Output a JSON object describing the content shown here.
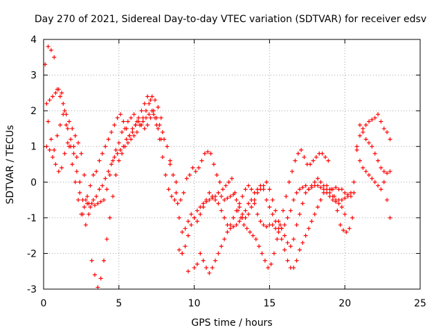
{
  "chart_data": {
    "type": "scatter",
    "title": "Day 270 of 2021, Sidereal Day-to-day VTEC variation (SDTVAR) for receiver edsv",
    "xlabel": "GPS time / hours",
    "ylabel": "SDTVAR / TECUs",
    "xlim": [
      0,
      25
    ],
    "ylim": [
      -3,
      4
    ],
    "xticks": [
      0,
      5,
      10,
      15,
      20,
      25
    ],
    "yticks": [
      -3,
      -2,
      -1,
      0,
      1,
      2,
      3,
      4
    ],
    "grid": true,
    "marker": "+",
    "color": "#ff0000",
    "series": [
      {
        "x": [
          0.1,
          0.3,
          0.5,
          0.7,
          0.9,
          1.1,
          1.3,
          1.5,
          1.7,
          1.9,
          2.1,
          2.3,
          2.5,
          2.7,
          2.9,
          3.1,
          3.3,
          3.5,
          3.7,
          3.9,
          4.1,
          4.3,
          4.5,
          4.7,
          4.9,
          5.1,
          5.3,
          5.5,
          5.7,
          5.9,
          6.1,
          6.3,
          6.5,
          6.7,
          6.9,
          7.1,
          7.3,
          7.5,
          7.7,
          7.9,
          8.1,
          8.3,
          8.5,
          8.7,
          8.9,
          9.1,
          9.3,
          9.5,
          9.7,
          9.9,
          10.1,
          10.3,
          10.5,
          10.7,
          10.9,
          11.1,
          11.3,
          11.5,
          11.7,
          11.9,
          12.1,
          12.3,
          12.5,
          12.7,
          12.9,
          13.1,
          13.3,
          13.5,
          13.7,
          13.9,
          14.1,
          14.3,
          14.5,
          14.7,
          14.9,
          15.1,
          15.3,
          15.5,
          15.7,
          15.9,
          16.1,
          16.3,
          16.5,
          16.7,
          16.9,
          17.1,
          17.3,
          17.5,
          17.7,
          17.9,
          18.1,
          18.3,
          18.5,
          18.7,
          18.9,
          19.1,
          19.3,
          19.5,
          19.7,
          19.9,
          20.1,
          20.3,
          20.5
        ],
        "y": [
          3.3,
          3.8,
          3.7,
          3.5,
          2.6,
          2.4,
          2.2,
          1.6,
          1.0,
          0.5,
          0.0,
          -0.5,
          -0.9,
          -0.7,
          -0.4,
          -0.1,
          0.2,
          0.3,
          0.6,
          0.8,
          1.0,
          1.2,
          1.4,
          1.6,
          1.8,
          1.9,
          1.7,
          1.5,
          1.3,
          1.4,
          1.6,
          1.8,
          2.0,
          2.2,
          2.4,
          2.3,
          2.0,
          1.6,
          1.2,
          0.7,
          0.2,
          -0.2,
          -0.4,
          -0.5,
          -0.6,
          -0.5,
          -0.3,
          0.1,
          0.2,
          0.4,
          0.3,
          0.4,
          0.6,
          0.8,
          0.85,
          0.8,
          0.5,
          0.2,
          0.0,
          -0.2,
          -0.1,
          0.0,
          0.1,
          -0.3,
          -0.8,
          -1.0,
          -1.2,
          -1.3,
          -1.4,
          -1.5,
          -1.6,
          -1.8,
          -2.0,
          -2.2,
          -2.4,
          -2.3,
          -2.0,
          -1.6,
          -1.2,
          -0.8,
          -0.4,
          0.0,
          0.3,
          0.6,
          0.8,
          0.9,
          0.7,
          0.5,
          0.5,
          0.6,
          0.7,
          0.8,
          0.8,
          0.7,
          0.6,
          -0.2,
          -0.4,
          -0.8,
          -1.2,
          -1.35,
          -1.4,
          -1.3,
          -1.0
        ]
      },
      {
        "x": [
          0.2,
          0.4,
          0.6,
          0.8,
          1.0,
          1.2,
          1.4,
          1.6,
          1.8,
          2.0,
          2.2,
          2.4,
          2.6,
          2.8,
          3.0,
          3.2,
          3.4,
          3.6,
          3.8,
          4.0,
          4.2,
          4.4,
          4.6,
          4.8,
          5.0,
          5.2,
          5.4,
          5.6,
          5.8,
          6.0,
          6.2,
          6.4,
          6.6,
          6.8,
          7.0,
          7.2,
          7.4,
          7.6,
          7.8,
          9.0,
          9.2,
          9.4,
          9.6,
          9.8,
          10.0,
          10.2,
          10.4,
          10.6,
          10.8,
          11.0,
          11.2,
          11.4,
          11.6,
          11.8,
          12.0,
          12.2,
          12.4,
          12.6,
          12.8,
          13.0,
          13.2,
          13.4,
          13.6,
          13.8,
          14.0,
          14.2,
          14.4,
          14.6,
          14.8,
          15.0,
          15.2,
          15.4,
          15.6,
          15.8,
          16.0,
          16.2,
          16.4,
          16.6,
          16.8,
          17.0,
          17.2,
          17.4,
          17.6,
          17.8,
          18.0,
          18.2,
          18.4,
          18.6,
          18.8,
          19.0,
          19.2,
          19.4,
          19.6,
          19.8,
          20.0,
          20.2,
          20.4,
          20.6,
          20.8,
          21.0,
          21.2,
          21.4,
          21.6,
          21.8,
          22.0,
          22.2,
          22.4,
          22.6,
          22.8,
          23.0
        ],
        "y": [
          2.2,
          2.3,
          2.4,
          2.5,
          2.6,
          2.5,
          2.0,
          1.5,
          1.2,
          1.0,
          0.7,
          0.0,
          -0.5,
          -0.5,
          -0.6,
          -0.6,
          -0.65,
          -0.6,
          -0.55,
          -0.5,
          -0.2,
          0.2,
          0.6,
          0.9,
          1.1,
          1.4,
          1.5,
          1.7,
          1.8,
          1.9,
          1.7,
          1.6,
          1.7,
          1.8,
          1.9,
          2.0,
          1.8,
          1.5,
          1.2,
          -1.9,
          -2.0,
          -1.8,
          -1.5,
          -1.2,
          -1.0,
          -0.8,
          -0.7,
          -0.6,
          -0.55,
          -0.5,
          -0.45,
          -0.4,
          -0.3,
          -0.4,
          -0.5,
          -0.45,
          -0.4,
          -0.35,
          -0.5,
          -0.7,
          -0.9,
          -1.0,
          -0.9,
          -0.7,
          -0.5,
          -0.3,
          -0.2,
          -0.1,
          0.0,
          -0.2,
          -0.5,
          -0.8,
          -1.1,
          -1.3,
          -1.5,
          -1.7,
          -1.8,
          -1.6,
          -1.2,
          -0.9,
          -0.6,
          -0.3,
          -0.2,
          -0.15,
          -0.1,
          -0.1,
          -0.15,
          -0.2,
          -0.3,
          -0.4,
          -0.5,
          -0.55,
          -0.5,
          -0.5,
          -0.45,
          -0.4,
          -0.4,
          0.0,
          1.0,
          1.3,
          1.5,
          1.6,
          1.7,
          1.75,
          1.8,
          1.9,
          1.7,
          1.5,
          1.4,
          1.2
        ]
      },
      {
        "x": [
          0.3,
          0.5,
          0.7,
          0.9,
          1.1,
          1.3,
          1.5,
          1.7,
          1.9,
          2.1,
          2.3,
          2.5,
          2.7,
          2.9,
          3.1,
          3.3,
          3.5,
          3.7,
          3.9,
          4.1,
          4.3,
          4.5,
          4.7,
          4.9,
          5.1,
          5.3,
          5.5,
          5.7,
          5.9,
          6.1,
          6.3,
          6.5,
          6.7,
          6.9,
          7.1,
          7.3,
          7.5,
          7.7,
          7.9,
          8.2,
          8.4,
          8.6,
          8.8,
          9.0,
          9.2,
          9.4,
          9.6,
          9.8,
          10.0,
          10.2,
          10.4,
          10.6,
          10.8,
          11.0,
          11.2,
          11.4,
          11.6,
          11.8,
          12.0,
          12.2,
          12.4,
          12.6,
          12.8,
          13.0,
          13.2,
          13.4,
          13.6,
          13.8,
          14.0,
          14.2,
          14.4,
          14.6,
          14.8,
          15.0,
          15.2,
          15.4,
          15.6,
          15.8,
          16.0,
          16.2,
          16.4,
          16.6,
          16.8,
          17.0,
          17.2,
          17.4,
          17.6,
          17.8,
          18.0,
          18.2,
          18.4,
          18.6,
          18.8,
          19.0,
          19.2,
          19.4,
          19.6,
          19.8,
          20.0,
          20.2,
          20.4,
          20.6,
          20.8,
          21.0,
          21.2,
          21.4,
          21.6,
          21.8,
          22.0,
          22.2,
          22.4,
          22.6,
          22.8,
          23.0
        ],
        "y": [
          1.7,
          1.2,
          0.9,
          1.3,
          1.6,
          1.9,
          1.9,
          1.7,
          1.5,
          1.3,
          1.1,
          0.8,
          0.2,
          -0.6,
          -0.7,
          -0.5,
          -0.4,
          -0.2,
          -0.1,
          0.1,
          0.3,
          0.5,
          0.7,
          0.8,
          0.9,
          1.0,
          1.2,
          1.3,
          1.5,
          1.6,
          1.7,
          1.6,
          1.5,
          1.6,
          1.8,
          1.9,
          1.8,
          1.6,
          1.4,
          1.0,
          0.6,
          0.2,
          -0.3,
          -1.0,
          -1.4,
          -1.3,
          -1.1,
          -0.9,
          -1.0,
          -1.1,
          -0.9,
          -0.7,
          -0.5,
          -0.3,
          -0.4,
          -0.5,
          -0.6,
          -0.8,
          -1.0,
          -1.2,
          -1.3,
          -1.25,
          -1.2,
          -1.1,
          -1.0,
          -0.8,
          -0.6,
          -0.5,
          -0.6,
          -0.9,
          -1.1,
          -1.2,
          -1.25,
          -1.2,
          -1.2,
          -1.3,
          -1.4,
          -1.3,
          -1.2,
          -1.0,
          -0.8,
          -0.5,
          -0.3,
          -0.2,
          -0.15,
          -0.1,
          -0.2,
          -0.1,
          0.0,
          0.1,
          0.0,
          -0.1,
          -0.1,
          -0.2,
          -0.2,
          -0.15,
          -0.2,
          -0.2,
          -0.3,
          -0.35,
          -0.3,
          -0.3,
          0.9,
          0.6,
          0.4,
          0.3,
          0.2,
          0.1,
          0.0,
          -0.1,
          -0.2,
          0.3,
          0.25,
          0.3
        ]
      },
      {
        "x": [
          0.2,
          0.4,
          0.6,
          0.8,
          1.0,
          1.2,
          1.4,
          1.6,
          1.8,
          2.0,
          2.2,
          2.4,
          2.6,
          2.8,
          3.0,
          3.2,
          3.4,
          3.6,
          3.8,
          4.0,
          4.2,
          4.4,
          4.6,
          4.8,
          5.0,
          5.2,
          5.4,
          5.6,
          5.8,
          6.0,
          6.2,
          6.4,
          6.6,
          6.8,
          7.0,
          7.2,
          7.4,
          7.6,
          7.8,
          8.0,
          8.4,
          8.8,
          9.2,
          9.6,
          10.0,
          10.2,
          10.4,
          10.6,
          10.8,
          11.0,
          11.2,
          11.4,
          11.6,
          11.8,
          12.0,
          12.2,
          12.4,
          12.6,
          12.8,
          13.0,
          13.2,
          13.4,
          13.6,
          13.8,
          14.0,
          14.2,
          14.4,
          14.6,
          14.8,
          15.0,
          15.2,
          15.4,
          15.6,
          15.8,
          16.0,
          16.2,
          16.4,
          16.6,
          16.8,
          17.0,
          17.2,
          17.4,
          17.6,
          17.8,
          18.0,
          18.2,
          18.4,
          18.6,
          18.8,
          19.0,
          19.2,
          19.4,
          19.6,
          19.8,
          20.0,
          21.0,
          21.2,
          21.4,
          21.6,
          21.8,
          22.0,
          22.2,
          22.4,
          22.6,
          22.8,
          23.0
        ],
        "y": [
          1.0,
          0.9,
          0.7,
          0.5,
          0.3,
          0.4,
          0.8,
          1.1,
          1.0,
          0.8,
          0.3,
          -0.3,
          -0.9,
          -1.2,
          -0.9,
          -2.2,
          -2.6,
          -2.95,
          -2.7,
          -2.2,
          -1.6,
          -1.0,
          -0.4,
          0.2,
          0.6,
          0.8,
          1.0,
          1.1,
          1.2,
          1.3,
          1.4,
          1.6,
          1.8,
          2.0,
          2.2,
          2.4,
          2.3,
          2.1,
          1.8,
          1.2,
          0.5,
          0.0,
          -2.0,
          -2.5,
          -2.4,
          -2.3,
          -2.0,
          -2.2,
          -2.4,
          -2.55,
          -2.4,
          -2.2,
          -2.0,
          -1.8,
          -1.6,
          -1.4,
          -1.2,
          -1.0,
          -0.8,
          -0.6,
          -0.4,
          -0.2,
          -0.1,
          -0.2,
          -0.3,
          -0.2,
          -0.1,
          -0.2,
          -0.5,
          -0.7,
          -0.9,
          -1.1,
          -1.3,
          -1.6,
          -1.9,
          -2.2,
          -2.4,
          -2.4,
          -2.2,
          -1.9,
          -1.7,
          -1.5,
          -1.3,
          -1.1,
          -0.9,
          -0.7,
          -0.5,
          -0.3,
          -0.2,
          -0.3,
          -0.4,
          -0.5,
          -0.6,
          -0.7,
          -0.9,
          1.6,
          1.4,
          1.2,
          1.1,
          1.0,
          0.8,
          0.6,
          0.4,
          0.0,
          -0.5,
          -1.0
        ]
      }
    ]
  }
}
